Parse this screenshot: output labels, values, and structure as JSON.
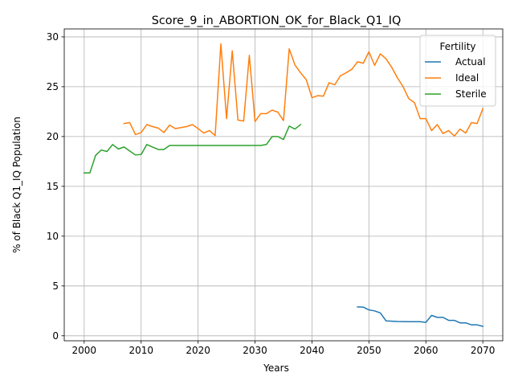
{
  "chart_data": {
    "type": "line",
    "title": "Score_9_in_ABORTION_OK_for_Black_Q1_IQ",
    "xlabel": "Years",
    "ylabel": "% of Black Q1_IQ Population",
    "xlim": [
      1996.5,
      2073.5
    ],
    "ylim": [
      -0.5,
      30.8
    ],
    "xticks": [
      2000,
      2010,
      2020,
      2030,
      2040,
      2050,
      2060,
      2070
    ],
    "yticks": [
      0,
      5,
      10,
      15,
      20,
      25,
      30
    ],
    "grid": true,
    "legend": {
      "title": "Fertility",
      "position": "top-right"
    },
    "series": [
      {
        "name": "Actual",
        "color": "#1f77b4",
        "x": [
          2048,
          2049,
          2050,
          2051,
          2052,
          2053,
          2054,
          2055,
          2056,
          2057,
          2058,
          2059,
          2060,
          2061,
          2062,
          2063,
          2064,
          2065,
          2066,
          2067,
          2068,
          2069,
          2070
        ],
        "y": [
          2.9,
          2.88,
          2.6,
          2.5,
          2.3,
          1.5,
          1.47,
          1.44,
          1.43,
          1.42,
          1.42,
          1.42,
          1.35,
          2.05,
          1.85,
          1.85,
          1.55,
          1.55,
          1.3,
          1.3,
          1.1,
          1.1,
          0.95
        ]
      },
      {
        "name": "Ideal",
        "color": "#ff7f0e",
        "x": [
          2007,
          2008,
          2009,
          2010,
          2011,
          2012,
          2013,
          2014,
          2015,
          2016,
          2017,
          2018,
          2019,
          2020,
          2021,
          2022,
          2023,
          2024,
          2025,
          2026,
          2027,
          2028,
          2029,
          2030,
          2031,
          2032,
          2033,
          2034,
          2035,
          2036,
          2037,
          2038,
          2039,
          2040,
          2041,
          2042,
          2043,
          2044,
          2045,
          2046,
          2047,
          2048,
          2049,
          2050,
          2051,
          2052,
          2053,
          2054,
          2055,
          2056,
          2057,
          2058,
          2059,
          2060,
          2061,
          2062,
          2063,
          2064,
          2065,
          2066,
          2067,
          2068,
          2069,
          2070
        ],
        "y": [
          21.3,
          21.4,
          20.2,
          20.4,
          21.2,
          21.0,
          20.85,
          20.4,
          21.15,
          20.8,
          20.9,
          21.0,
          21.2,
          20.8,
          20.35,
          20.6,
          20.1,
          29.3,
          21.8,
          28.6,
          21.65,
          21.55,
          28.15,
          21.5,
          22.3,
          22.3,
          22.65,
          22.45,
          21.6,
          28.8,
          27.2,
          26.4,
          25.7,
          23.9,
          24.1,
          24.05,
          25.4,
          25.2,
          26.1,
          26.4,
          26.75,
          27.5,
          27.35,
          28.5,
          27.15,
          28.3,
          27.8,
          26.95,
          25.9,
          25.0,
          23.8,
          23.4,
          21.8,
          21.8,
          20.6,
          21.2,
          20.3,
          20.6,
          20.05,
          20.75,
          20.35,
          21.4,
          21.3,
          22.8
        ]
      },
      {
        "name": "Sterile",
        "color": "#2ca02c",
        "x": [
          2000,
          2001,
          2002,
          2003,
          2004,
          2005,
          2006,
          2007,
          2008,
          2009,
          2010,
          2011,
          2012,
          2013,
          2014,
          2015,
          2016,
          2017,
          2018,
          2019,
          2020,
          2021,
          2022,
          2023,
          2024,
          2025,
          2026,
          2027,
          2028,
          2029,
          2030,
          2031,
          2032,
          2033,
          2034,
          2035,
          2036,
          2037,
          2038
        ],
        "y": [
          16.35,
          16.35,
          18.1,
          18.65,
          18.5,
          19.2,
          18.75,
          18.95,
          18.55,
          18.15,
          18.2,
          19.2,
          18.95,
          18.7,
          18.7,
          19.1,
          19.1,
          19.1,
          19.1,
          19.1,
          19.1,
          19.1,
          19.1,
          19.1,
          19.1,
          19.1,
          19.1,
          19.1,
          19.1,
          19.1,
          19.1,
          19.1,
          19.2,
          20.0,
          20.0,
          19.7,
          21.05,
          20.75,
          21.2
        ]
      }
    ]
  }
}
